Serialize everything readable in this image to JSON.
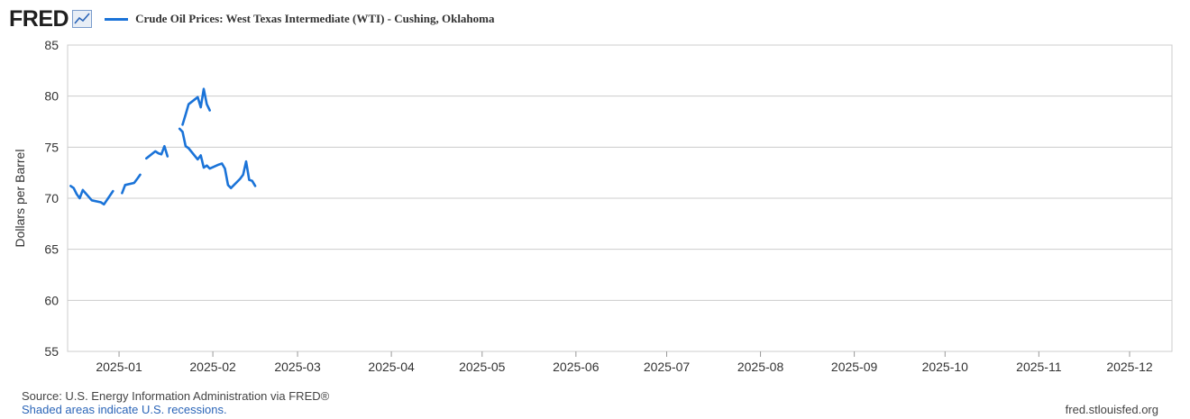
{
  "header": {
    "logo": "FRED",
    "logo_icon": "line-graph-icon"
  },
  "colors": {
    "series": "#1a73d8",
    "grid": "#cccccc",
    "plot_bg": "#ffffff",
    "border": "#cccccc"
  },
  "footer": {
    "source": "Source: U.S. Energy Information Administration via FRED®",
    "recessions": "Shaded areas indicate U.S. recessions.",
    "site": "fred.stlouisfed.org"
  },
  "chart_data": {
    "type": "line",
    "title": "",
    "xlabel": "",
    "ylabel": "Dollars per Barrel",
    "ylim": [
      55,
      85
    ],
    "yticks": [
      55,
      60,
      65,
      70,
      75,
      80,
      85
    ],
    "xlim": [
      "2024-12-15",
      "2025-12-15"
    ],
    "xticks": [
      "2025-01-01",
      "2025-02-01",
      "2025-03-01",
      "2025-04-01",
      "2025-05-01",
      "2025-06-01",
      "2025-07-01",
      "2025-08-01",
      "2025-09-01",
      "2025-10-01",
      "2025-11-01",
      "2025-12-01"
    ],
    "xtick_labels": [
      "2025-01",
      "2025-02",
      "2025-03",
      "2025-04",
      "2025-05",
      "2025-06",
      "2025-07",
      "2025-08",
      "2025-09",
      "2025-10",
      "2025-11",
      "2025-12"
    ],
    "grid": true,
    "legend": "top-left",
    "series": [
      {
        "name": "Crude Oil Prices: West Texas Intermediate (WTI) - Cushing, Oklahoma",
        "segments": [
          [
            [
              "2024-12-16",
              71.2
            ],
            [
              "2024-12-17",
              71.0
            ],
            [
              "2024-12-18",
              70.4
            ],
            [
              "2024-12-19",
              70.0
            ],
            [
              "2024-12-20",
              70.8
            ],
            [
              "2024-12-23",
              69.8
            ],
            [
              "2024-12-26",
              69.6
            ],
            [
              "2024-12-27",
              69.4
            ],
            [
              "2024-12-30",
              70.7
            ]
          ],
          [
            [
              "2025-01-02",
              70.5
            ],
            [
              "2025-01-03",
              71.3
            ],
            [
              "2025-01-06",
              71.5
            ],
            [
              "2025-01-07",
              71.9
            ],
            [
              "2025-01-08",
              72.3
            ]
          ],
          [
            [
              "2025-01-10",
              73.9
            ],
            [
              "2025-01-13",
              74.6
            ],
            [
              "2025-01-14",
              74.4
            ],
            [
              "2025-01-15",
              74.3
            ],
            [
              "2025-01-16",
              75.1
            ],
            [
              "2025-01-17",
              74.1
            ]
          ],
          [
            [
              "2025-01-22",
              77.2
            ],
            [
              "2025-01-23",
              78.2
            ],
            [
              "2025-01-24",
              79.2
            ],
            [
              "2025-01-27",
              79.9
            ],
            [
              "2025-01-28",
              78.9
            ],
            [
              "2025-01-29",
              80.7
            ],
            [
              "2025-01-30",
              79.2
            ],
            [
              "2025-01-31",
              78.6
            ]
          ],
          [
            [
              "2025-01-21",
              76.8
            ],
            [
              "2025-01-22",
              76.5
            ],
            [
              "2025-01-23",
              75.1
            ],
            [
              "2025-01-24",
              74.9
            ],
            [
              "2025-01-27",
              73.8
            ],
            [
              "2025-01-28",
              74.2
            ],
            [
              "2025-01-29",
              73.0
            ],
            [
              "2025-01-30",
              73.2
            ],
            [
              "2025-01-31",
              72.9
            ],
            [
              "2025-02-03",
              73.3
            ],
            [
              "2025-02-04",
              73.4
            ],
            [
              "2025-02-05",
              72.9
            ],
            [
              "2025-02-06",
              71.3
            ],
            [
              "2025-02-07",
              71.0
            ],
            [
              "2025-02-10",
              71.9
            ],
            [
              "2025-02-11",
              72.3
            ],
            [
              "2025-02-12",
              73.6
            ],
            [
              "2025-02-13",
              71.8
            ],
            [
              "2025-02-14",
              71.7
            ],
            [
              "2025-02-15",
              71.2
            ]
          ]
        ]
      }
    ]
  }
}
